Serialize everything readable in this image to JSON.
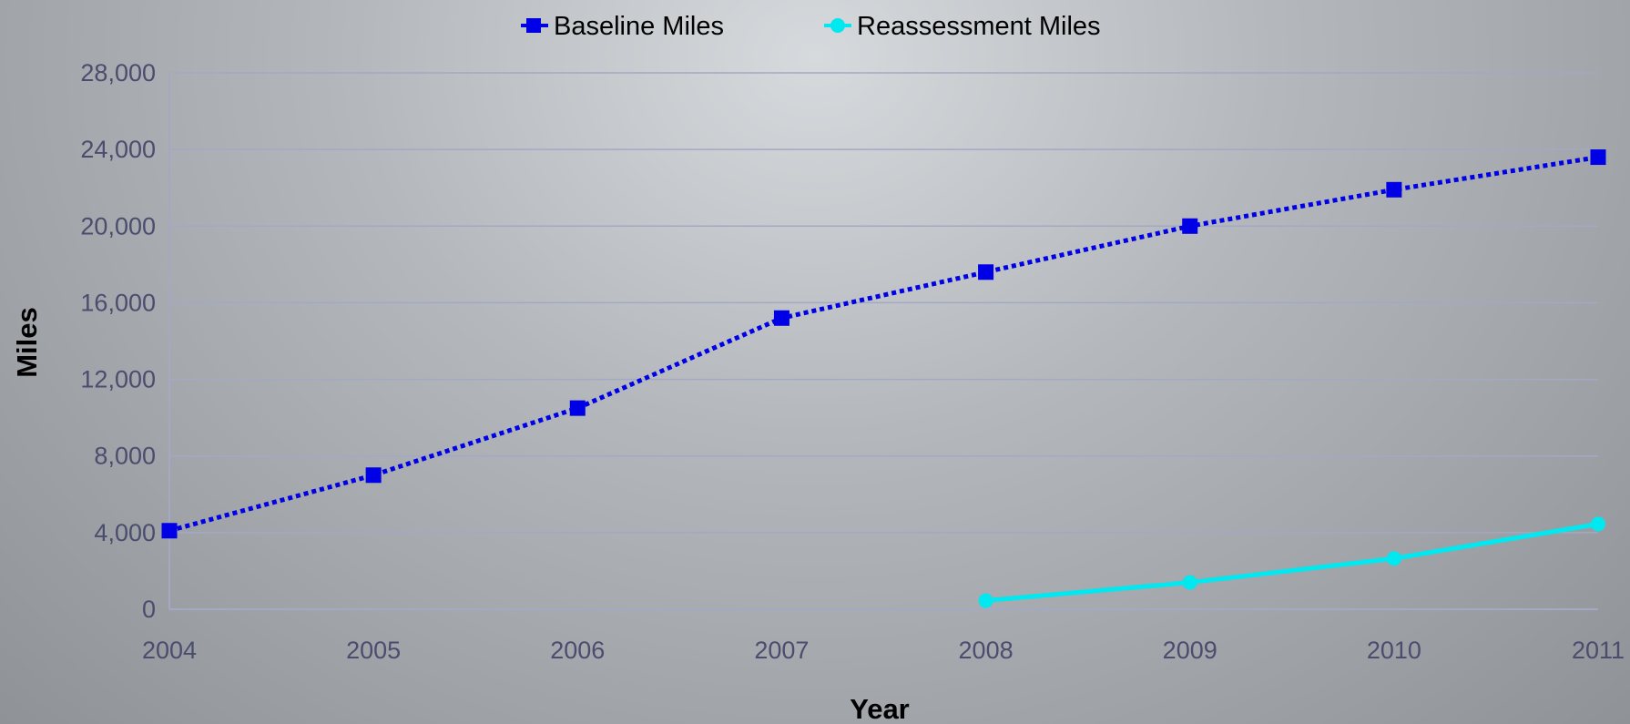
{
  "chart_data": {
    "type": "line",
    "title": "",
    "xlabel": "Year",
    "ylabel": "Miles",
    "x": [
      2004,
      2005,
      2006,
      2007,
      2008,
      2009,
      2010,
      2011
    ],
    "x_tick_labels": [
      "2004",
      "2005",
      "2006",
      "2007",
      "2008",
      "2009",
      "2010",
      "2011"
    ],
    "y_tick_labels": [
      "0",
      "4,000",
      "8,000",
      "12,000",
      "16,000",
      "20,000",
      "24,000",
      "28,000"
    ],
    "y_ticks": [
      0,
      4000,
      8000,
      12000,
      16000,
      20000,
      24000,
      28000
    ],
    "ylim": [
      0,
      28000
    ],
    "xlim": [
      2004,
      2011
    ],
    "grid": true,
    "legend_position": "top-center",
    "series": [
      {
        "name": "Baseline Miles",
        "color": "#0000e6",
        "line_style": "dotted",
        "marker": "square",
        "values": [
          4100,
          7000,
          10500,
          15200,
          17600,
          20000,
          21900,
          23600
        ]
      },
      {
        "name": "Reassessment Miles",
        "color": "#00e8f0",
        "line_style": "solid",
        "marker": "circle",
        "values": [
          null,
          null,
          null,
          null,
          450,
          1400,
          2650,
          4450
        ]
      }
    ]
  }
}
